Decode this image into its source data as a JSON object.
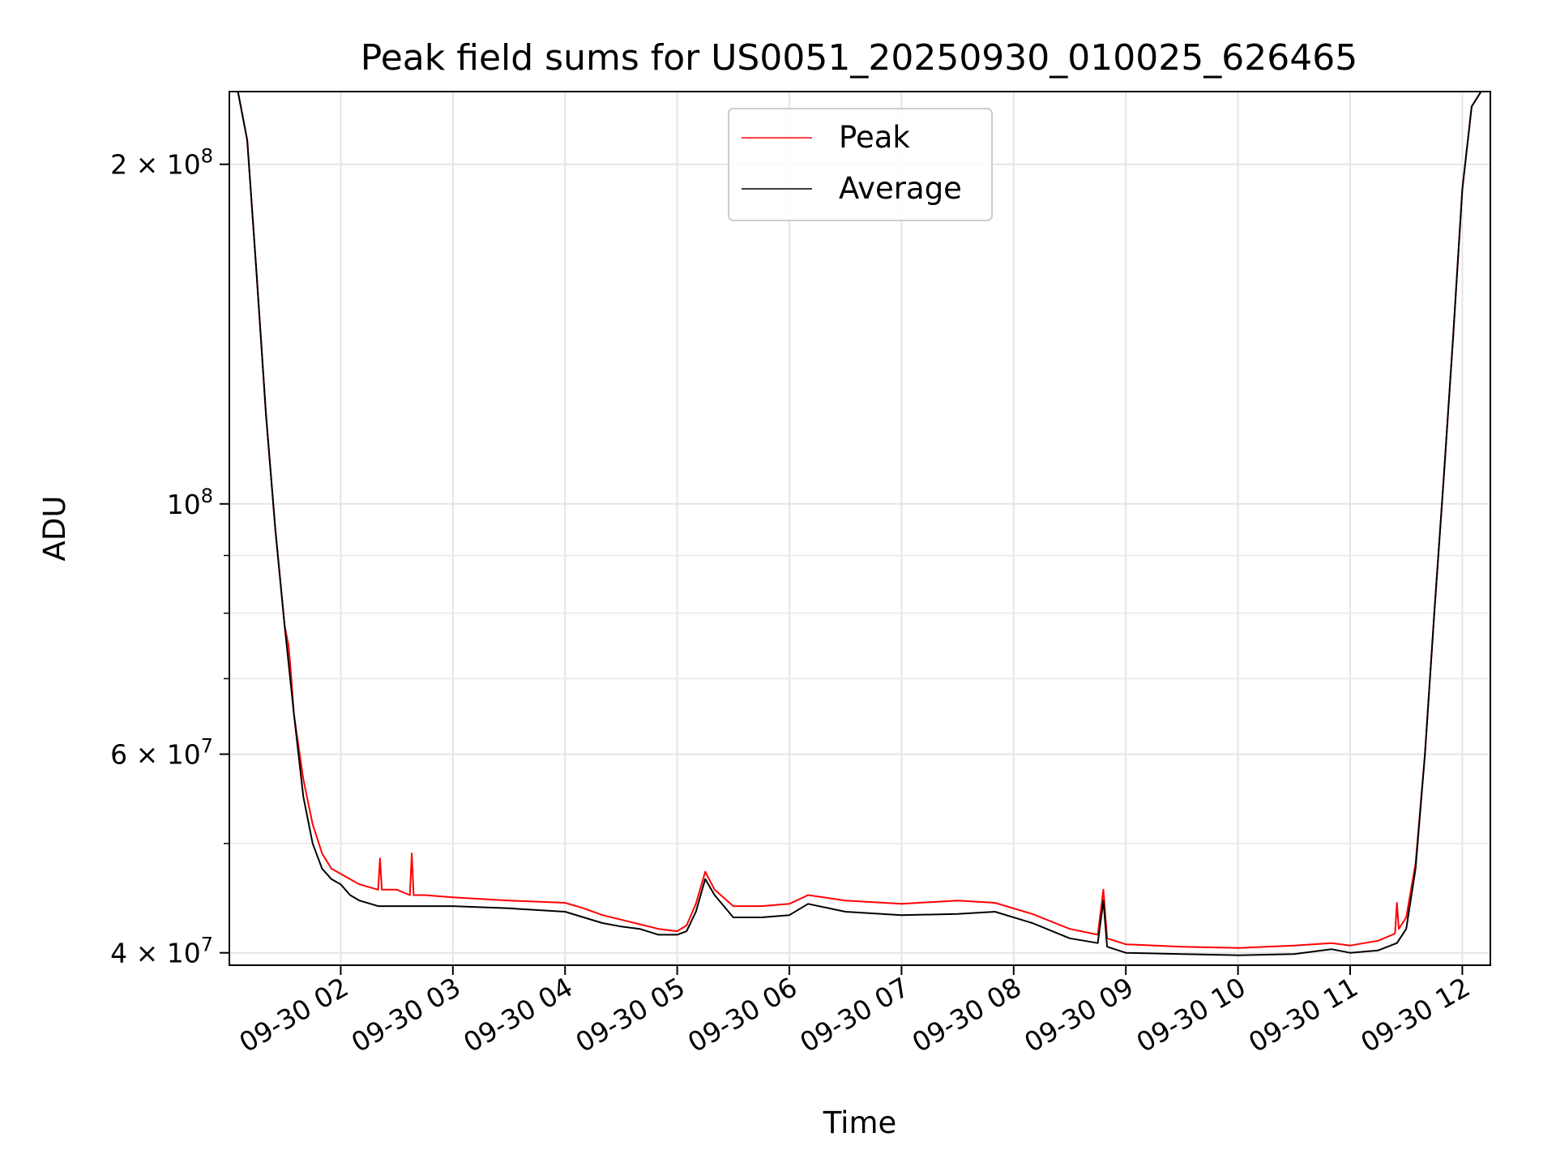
{
  "chart_data": {
    "type": "line",
    "title": "Peak field sums for US0051_20250930_010025_626465",
    "xlabel": "Time",
    "ylabel": "ADU",
    "y_scale": "log",
    "ylim": [
      39000000,
      232000000
    ],
    "xlim": [
      "2025-09-30T01:00:25",
      "2025-09-30T12:15:00"
    ],
    "grid": true,
    "legend_position": "upper center",
    "x_tick_labels": [
      "09-30 02",
      "09-30 03",
      "09-30 04",
      "09-30 05",
      "09-30 06",
      "09-30 07",
      "09-30 08",
      "09-30 09",
      "09-30 10",
      "09-30 11",
      "09-30 12"
    ],
    "x_ticks": [
      "2025-09-30T02:00",
      "2025-09-30T03:00",
      "2025-09-30T04:00",
      "2025-09-30T05:00",
      "2025-09-30T06:00",
      "2025-09-30T07:00",
      "2025-09-30T08:00",
      "2025-09-30T09:00",
      "2025-09-30T10:00",
      "2025-09-30T11:00",
      "2025-09-30T12:00"
    ],
    "y_ticks": [
      {
        "value": 40000000,
        "label_base": "4 × 10",
        "label_exp": "7"
      },
      {
        "value": 60000000,
        "label_base": "6 × 10",
        "label_exp": "7"
      },
      {
        "value": 100000000,
        "label_base": "10",
        "label_exp": "8"
      },
      {
        "value": 200000000,
        "label_base": "2 × 10",
        "label_exp": "8"
      }
    ],
    "y_minor_ticks": [
      50000000,
      70000000,
      80000000,
      90000000
    ],
    "series": [
      {
        "name": "Average",
        "color": "#000000",
        "x": [
          "2025-09-30T01:00:25",
          "2025-09-30T01:05",
          "2025-09-30T01:10",
          "2025-09-30T01:15",
          "2025-09-30T01:20",
          "2025-09-30T01:25",
          "2025-09-30T01:30",
          "2025-09-30T01:35",
          "2025-09-30T01:40",
          "2025-09-30T01:45",
          "2025-09-30T01:50",
          "2025-09-30T01:55",
          "2025-09-30T02:00",
          "2025-09-30T02:05",
          "2025-09-30T02:10",
          "2025-09-30T02:20",
          "2025-09-30T02:30",
          "2025-09-30T02:45",
          "2025-09-30T03:00",
          "2025-09-30T03:30",
          "2025-09-30T04:00",
          "2025-09-30T04:10",
          "2025-09-30T04:20",
          "2025-09-30T04:30",
          "2025-09-30T04:40",
          "2025-09-30T04:50",
          "2025-09-30T05:00",
          "2025-09-30T05:05",
          "2025-09-30T05:10",
          "2025-09-30T05:15",
          "2025-09-30T05:20",
          "2025-09-30T05:30",
          "2025-09-30T05:45",
          "2025-09-30T06:00",
          "2025-09-30T06:10",
          "2025-09-30T06:30",
          "2025-09-30T07:00",
          "2025-09-30T07:30",
          "2025-09-30T07:50",
          "2025-09-30T08:10",
          "2025-09-30T08:30",
          "2025-09-30T08:45",
          "2025-09-30T08:48",
          "2025-09-30T08:50",
          "2025-09-30T09:00",
          "2025-09-30T09:30",
          "2025-09-30T10:00",
          "2025-09-30T10:30",
          "2025-09-30T10:50",
          "2025-09-30T11:00",
          "2025-09-30T11:15",
          "2025-09-30T11:25",
          "2025-09-30T11:30",
          "2025-09-30T11:35",
          "2025-09-30T11:40",
          "2025-09-30T11:45",
          "2025-09-30T11:50",
          "2025-09-30T11:55",
          "2025-09-30T12:00",
          "2025-09-30T12:05",
          "2025-09-30T12:10",
          "2025-09-30T12:12"
        ],
        "y": [
          232000000,
          232000000,
          210000000,
          160000000,
          120000000,
          95000000,
          78000000,
          65000000,
          55000000,
          50000000,
          47500000,
          46500000,
          46000000,
          45000000,
          44500000,
          44000000,
          44000000,
          44000000,
          44000000,
          43800000,
          43500000,
          43000000,
          42500000,
          42200000,
          42000000,
          41500000,
          41500000,
          41800000,
          43500000,
          46500000,
          45000000,
          43000000,
          43000000,
          43200000,
          44200000,
          43500000,
          43200000,
          43300000,
          43500000,
          42500000,
          41200000,
          40800000,
          44500000,
          40500000,
          40000000,
          39900000,
          39800000,
          39900000,
          40300000,
          40000000,
          40200000,
          40800000,
          42000000,
          47500000,
          60000000,
          80000000,
          105000000,
          140000000,
          190000000,
          225000000,
          232000000,
          232000000
        ]
      },
      {
        "name": "Peak",
        "color": "#ff0000",
        "x": [
          "2025-09-30T01:00:25",
          "2025-09-30T01:05",
          "2025-09-30T01:10",
          "2025-09-30T01:15",
          "2025-09-30T01:20",
          "2025-09-30T01:25",
          "2025-09-30T01:30",
          "2025-09-30T01:32",
          "2025-09-30T01:33",
          "2025-09-30T01:35",
          "2025-09-30T01:40",
          "2025-09-30T01:45",
          "2025-09-30T01:50",
          "2025-09-30T01:55",
          "2025-09-30T02:00",
          "2025-09-30T02:05",
          "2025-09-30T02:10",
          "2025-09-30T02:20",
          "2025-09-30T02:21",
          "2025-09-30T02:22",
          "2025-09-30T02:30",
          "2025-09-30T02:37",
          "2025-09-30T02:38",
          "2025-09-30T02:39",
          "2025-09-30T02:45",
          "2025-09-30T03:00",
          "2025-09-30T03:30",
          "2025-09-30T04:00",
          "2025-09-30T04:10",
          "2025-09-30T04:20",
          "2025-09-30T04:30",
          "2025-09-30T04:40",
          "2025-09-30T04:50",
          "2025-09-30T05:00",
          "2025-09-30T05:05",
          "2025-09-30T05:10",
          "2025-09-30T05:15",
          "2025-09-30T05:20",
          "2025-09-30T05:30",
          "2025-09-30T05:45",
          "2025-09-30T06:00",
          "2025-09-30T06:10",
          "2025-09-30T06:30",
          "2025-09-30T07:00",
          "2025-09-30T07:30",
          "2025-09-30T07:50",
          "2025-09-30T08:10",
          "2025-09-30T08:30",
          "2025-09-30T08:45",
          "2025-09-30T08:48",
          "2025-09-30T08:50",
          "2025-09-30T09:00",
          "2025-09-30T09:30",
          "2025-09-30T10:00",
          "2025-09-30T10:30",
          "2025-09-30T10:50",
          "2025-09-30T11:00",
          "2025-09-30T11:15",
          "2025-09-30T11:24",
          "2025-09-30T11:25",
          "2025-09-30T11:26",
          "2025-09-30T11:30",
          "2025-09-30T11:35",
          "2025-09-30T11:40",
          "2025-09-30T11:45",
          "2025-09-30T11:50",
          "2025-09-30T11:55",
          "2025-09-30T12:00",
          "2025-09-30T12:05",
          "2025-09-30T12:10",
          "2025-09-30T12:12"
        ],
        "y": [
          232000000,
          232000000,
          210000000,
          160000000,
          120000000,
          95000000,
          78000000,
          75000000,
          72000000,
          65000000,
          57000000,
          52000000,
          49000000,
          47500000,
          47000000,
          46500000,
          46000000,
          45500000,
          48500000,
          45500000,
          45500000,
          45000000,
          49000000,
          45000000,
          45000000,
          44800000,
          44500000,
          44300000,
          43800000,
          43200000,
          42800000,
          42400000,
          42000000,
          41800000,
          42300000,
          44200000,
          47200000,
          45500000,
          44000000,
          44000000,
          44200000,
          45000000,
          44500000,
          44200000,
          44500000,
          44300000,
          43300000,
          42000000,
          41500000,
          45500000,
          41200000,
          40700000,
          40500000,
          40400000,
          40600000,
          40800000,
          40600000,
          41000000,
          41600000,
          44300000,
          42000000,
          43000000,
          48000000,
          60000000,
          80000000,
          105000000,
          140000000,
          190000000,
          225000000,
          232000000,
          232000000
        ]
      }
    ]
  }
}
